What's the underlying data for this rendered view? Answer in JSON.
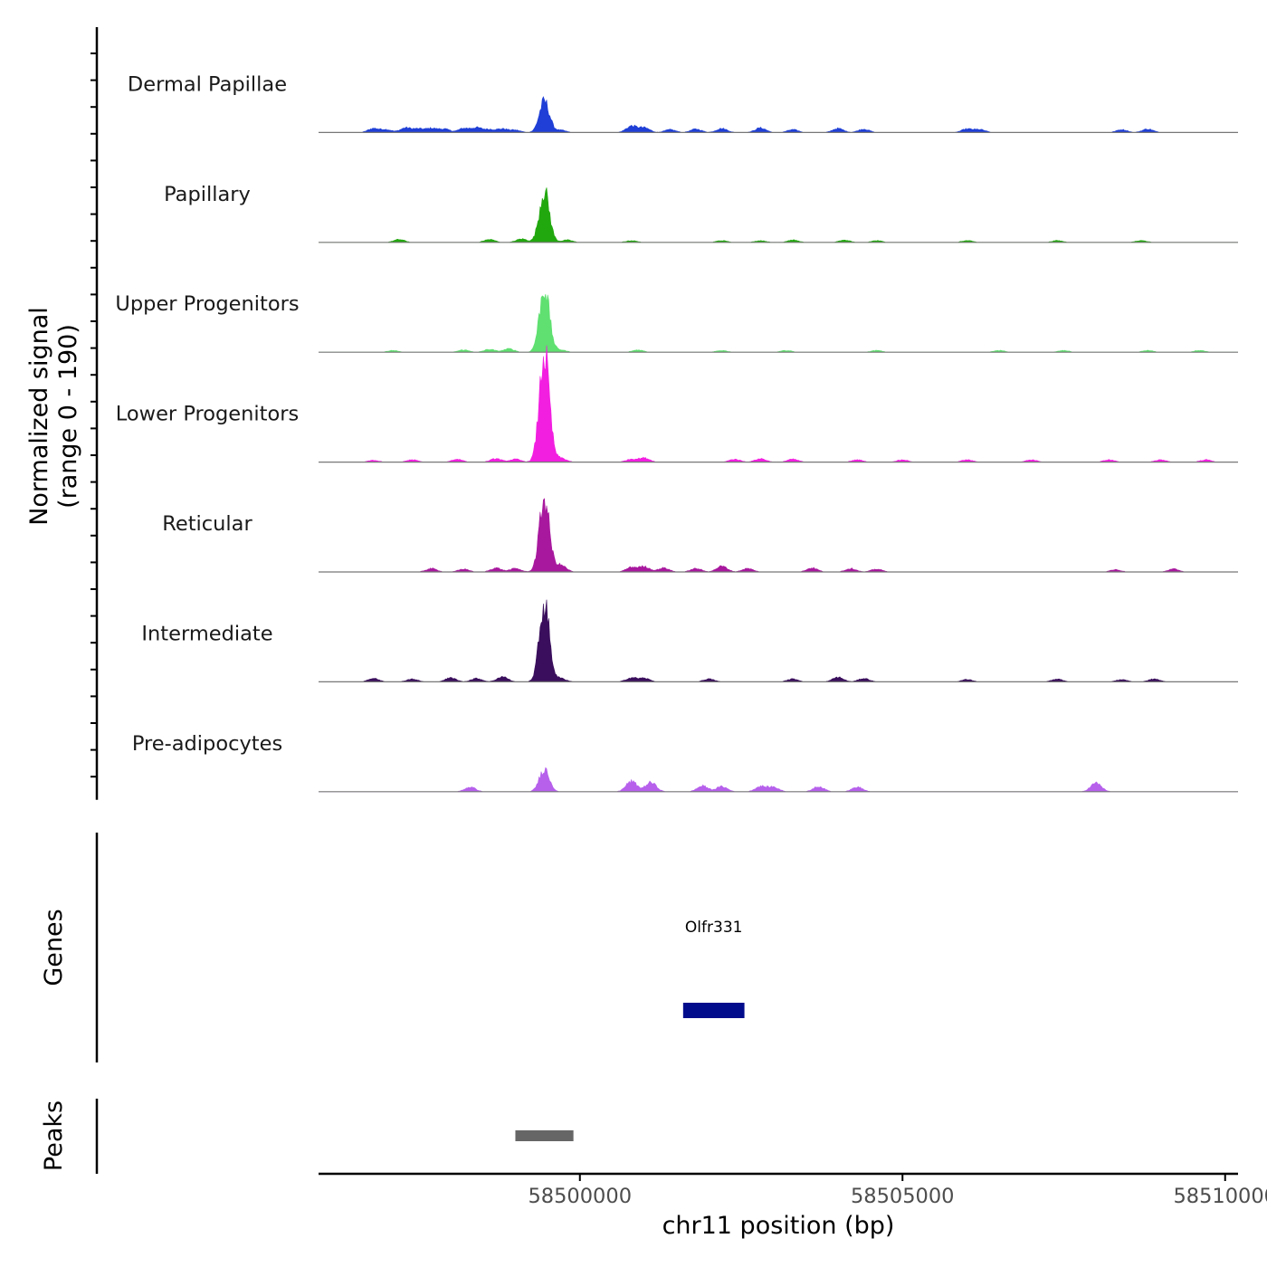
{
  "chart_data": {
    "type": "area",
    "title": "",
    "chromosome": "chr11",
    "xlabel": "chr11 position (bp)",
    "ylabel_line1": "Normalized signal",
    "ylabel_line2": "(range 0 - 190)",
    "yrange": [
      0,
      190
    ],
    "xlim": [
      58495950,
      58510200
    ],
    "xticks": [
      {
        "value": 58500000,
        "label": "58500000"
      },
      {
        "value": 58505000,
        "label": "58505000"
      },
      {
        "value": 58510000,
        "label": "58510000"
      }
    ],
    "peak_summit_bp": 58499450,
    "series": [
      {
        "name": "Dermal Papillae",
        "color": "#1f3fd6",
        "summit": 55,
        "bumps": [
          [
            58496800,
            7
          ],
          [
            58497000,
            5
          ],
          [
            58497300,
            8
          ],
          [
            58497500,
            6
          ],
          [
            58497700,
            7
          ],
          [
            58497900,
            6
          ],
          [
            58498200,
            7
          ],
          [
            58498400,
            8
          ],
          [
            58498600,
            5
          ],
          [
            58498800,
            6
          ],
          [
            58499000,
            4
          ],
          [
            58499700,
            4
          ],
          [
            58500800,
            11
          ],
          [
            58501000,
            8
          ],
          [
            58501400,
            5
          ],
          [
            58501800,
            6
          ],
          [
            58502200,
            7
          ],
          [
            58502800,
            8
          ],
          [
            58503300,
            5
          ],
          [
            58504000,
            7
          ],
          [
            58504400,
            6
          ],
          [
            58506000,
            6
          ],
          [
            58506200,
            5
          ],
          [
            58508400,
            5
          ],
          [
            58508800,
            6
          ]
        ]
      },
      {
        "name": "Papillary",
        "color": "#22a80f",
        "summit": 90,
        "bumps": [
          [
            58497200,
            5
          ],
          [
            58498600,
            5
          ],
          [
            58499100,
            6
          ],
          [
            58499800,
            4
          ],
          [
            58500800,
            3
          ],
          [
            58502200,
            3
          ],
          [
            58502800,
            3
          ],
          [
            58503300,
            4
          ],
          [
            58504100,
            4
          ],
          [
            58504600,
            3
          ],
          [
            58506000,
            3
          ],
          [
            58507400,
            3
          ],
          [
            58508700,
            3
          ]
        ]
      },
      {
        "name": "Upper Progenitors",
        "color": "#5fe070",
        "summit": 112,
        "bumps": [
          [
            58497100,
            3
          ],
          [
            58498200,
            4
          ],
          [
            58498600,
            5
          ],
          [
            58498900,
            6
          ],
          [
            58499700,
            4
          ],
          [
            58500900,
            4
          ],
          [
            58502200,
            3
          ],
          [
            58503200,
            3
          ],
          [
            58504600,
            3
          ],
          [
            58506500,
            3
          ],
          [
            58507500,
            3
          ],
          [
            58508800,
            3
          ],
          [
            58509600,
            3
          ]
        ]
      },
      {
        "name": "Lower Progenitors",
        "color": "#f21ee0",
        "summit": 190,
        "bumps": [
          [
            58496800,
            3
          ],
          [
            58497400,
            4
          ],
          [
            58498100,
            5
          ],
          [
            58498700,
            6
          ],
          [
            58499000,
            5
          ],
          [
            58499700,
            7
          ],
          [
            58500800,
            5
          ],
          [
            58501000,
            7
          ],
          [
            58502400,
            5
          ],
          [
            58502800,
            6
          ],
          [
            58503300,
            5
          ],
          [
            58504300,
            4
          ],
          [
            58505000,
            4
          ],
          [
            58506000,
            4
          ],
          [
            58507000,
            4
          ],
          [
            58508200,
            4
          ],
          [
            58509000,
            4
          ],
          [
            58509700,
            4
          ]
        ]
      },
      {
        "name": "Reticular",
        "color": "#a8189e",
        "summit": 128,
        "bumps": [
          [
            58497700,
            6
          ],
          [
            58498200,
            5
          ],
          [
            58498700,
            7
          ],
          [
            58499000,
            6
          ],
          [
            58499700,
            12
          ],
          [
            58500800,
            8
          ],
          [
            58501000,
            9
          ],
          [
            58501300,
            7
          ],
          [
            58501800,
            6
          ],
          [
            58502200,
            10
          ],
          [
            58502600,
            6
          ],
          [
            58503600,
            7
          ],
          [
            58504200,
            6
          ],
          [
            58504600,
            5
          ],
          [
            58508300,
            4
          ],
          [
            58509200,
            5
          ]
        ]
      },
      {
        "name": "Intermediate",
        "color": "#3a0e5c",
        "summit": 138,
        "bumps": [
          [
            58496800,
            6
          ],
          [
            58497400,
            5
          ],
          [
            58498000,
            7
          ],
          [
            58498400,
            6
          ],
          [
            58498800,
            9
          ],
          [
            58499700,
            6
          ],
          [
            58500800,
            7
          ],
          [
            58501000,
            6
          ],
          [
            58502000,
            5
          ],
          [
            58503300,
            5
          ],
          [
            58504000,
            8
          ],
          [
            58504400,
            6
          ],
          [
            58506000,
            4
          ],
          [
            58507400,
            5
          ],
          [
            58508400,
            4
          ],
          [
            58508900,
            5
          ]
        ]
      },
      {
        "name": "Pre-adipocytes",
        "color": "#b660ec",
        "summit": 40,
        "bumps": [
          [
            58498300,
            8
          ],
          [
            58500800,
            18
          ],
          [
            58501100,
            16
          ],
          [
            58501900,
            10
          ],
          [
            58502200,
            9
          ],
          [
            58502800,
            9
          ],
          [
            58503000,
            8
          ],
          [
            58503700,
            9
          ],
          [
            58504300,
            8
          ],
          [
            58508000,
            15
          ]
        ]
      }
    ],
    "genes_track": {
      "label": "Genes",
      "genes": [
        {
          "name": "Olfr331",
          "start": 58501600,
          "end": 58502550,
          "color": "#000c8b"
        }
      ]
    },
    "peaks_track": {
      "label": "Peaks",
      "peaks": [
        {
          "start": 58499000,
          "end": 58499900,
          "color": "#666666"
        }
      ]
    }
  }
}
